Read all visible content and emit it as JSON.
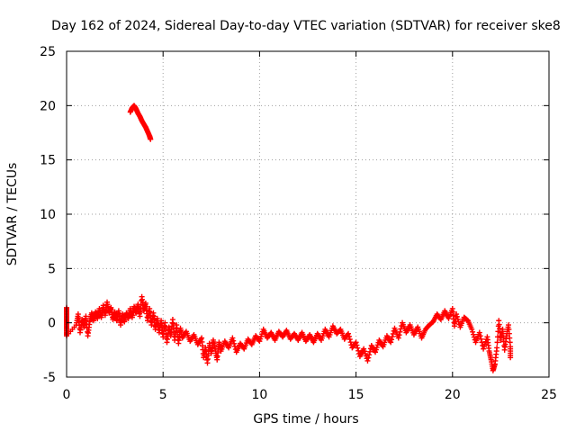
{
  "chart_data": {
    "type": "scatter",
    "title": "Day 162 of 2024, Sidereal Day-to-day VTEC variation (SDTVAR) for receiver ske8",
    "xlabel": "GPS time / hours",
    "ylabel": "SDTVAR / TECUs",
    "xlim": [
      0,
      25
    ],
    "ylim": [
      -5,
      25
    ],
    "xticks": [
      0,
      5,
      10,
      15,
      20,
      25
    ],
    "yticks": [
      -5,
      0,
      5,
      10,
      15,
      20,
      25
    ],
    "grid": true,
    "marker": "+",
    "series": [
      {
        "name": "SDTVAR",
        "color": "#ff0000",
        "points": [
          [
            0.0,
            1.4
          ],
          [
            0.0,
            0.9
          ],
          [
            0.0,
            0.4
          ],
          [
            0.0,
            -0.1
          ],
          [
            0.0,
            -0.6
          ],
          [
            0.0,
            -1.2
          ],
          [
            0.5,
            -0.2
          ],
          [
            0.6,
            0.8
          ],
          [
            0.7,
            -0.9
          ],
          [
            0.8,
            0.3
          ],
          [
            0.9,
            -0.4
          ],
          [
            1.0,
            0.6
          ],
          [
            1.1,
            -1.2
          ],
          [
            1.2,
            0.1
          ],
          [
            1.3,
            0.9
          ],
          [
            1.4,
            0.2
          ],
          [
            1.5,
            1.0
          ],
          [
            1.6,
            0.4
          ],
          [
            1.7,
            1.3
          ],
          [
            1.8,
            0.5
          ],
          [
            1.9,
            1.6
          ],
          [
            2.0,
            0.7
          ],
          [
            2.1,
            1.9
          ],
          [
            2.2,
            0.9
          ],
          [
            2.3,
            1.4
          ],
          [
            2.4,
            0.3
          ],
          [
            2.5,
            1.0
          ],
          [
            2.6,
            0.2
          ],
          [
            2.7,
            1.1
          ],
          [
            2.8,
            -0.2
          ],
          [
            2.9,
            0.8
          ],
          [
            3.0,
            0.1
          ],
          [
            3.1,
            0.9
          ],
          [
            3.2,
            0.4
          ],
          [
            3.3,
            1.3
          ],
          [
            3.4,
            0.5
          ],
          [
            3.5,
            1.5
          ],
          [
            3.6,
            0.9
          ],
          [
            3.7,
            1.7
          ],
          [
            3.8,
            0.6
          ],
          [
            3.9,
            2.4
          ],
          [
            4.0,
            1.1
          ],
          [
            4.1,
            1.8
          ],
          [
            4.2,
            0.2
          ],
          [
            4.3,
            1.3
          ],
          [
            4.4,
            -0.2
          ],
          [
            4.5,
            0.9
          ],
          [
            4.6,
            -0.6
          ],
          [
            4.7,
            0.4
          ],
          [
            4.8,
            -0.9
          ],
          [
            4.9,
            0.2
          ],
          [
            5.0,
            -1.3
          ],
          [
            5.1,
            0.0
          ],
          [
            5.2,
            -1.8
          ],
          [
            5.3,
            -0.4
          ],
          [
            5.4,
            -1.2
          ],
          [
            5.5,
            0.3
          ],
          [
            5.6,
            -1.6
          ],
          [
            5.7,
            -0.2
          ],
          [
            5.8,
            -1.9
          ],
          [
            5.9,
            -0.5
          ],
          [
            6.0,
            -1.4
          ],
          [
            6.2,
            -0.8
          ],
          [
            6.4,
            -1.7
          ],
          [
            6.6,
            -1.1
          ],
          [
            6.8,
            -2.0
          ],
          [
            7.0,
            -1.4
          ],
          [
            7.1,
            -3.2
          ],
          [
            7.2,
            -2.3
          ],
          [
            7.3,
            -3.7
          ],
          [
            7.4,
            -1.9
          ],
          [
            7.5,
            -2.8
          ],
          [
            7.6,
            -1.6
          ],
          [
            7.7,
            -2.4
          ],
          [
            7.8,
            -3.4
          ],
          [
            7.9,
            -1.8
          ],
          [
            8.0,
            -2.6
          ],
          [
            8.2,
            -1.7
          ],
          [
            8.4,
            -2.3
          ],
          [
            8.6,
            -1.4
          ],
          [
            8.8,
            -2.7
          ],
          [
            9.0,
            -1.9
          ],
          [
            9.2,
            -2.4
          ],
          [
            9.4,
            -1.5
          ],
          [
            9.6,
            -2.0
          ],
          [
            9.8,
            -1.2
          ],
          [
            10.0,
            -1.7
          ],
          [
            10.2,
            -0.6
          ],
          [
            10.4,
            -1.4
          ],
          [
            10.6,
            -0.9
          ],
          [
            10.8,
            -1.6
          ],
          [
            11.0,
            -0.8
          ],
          [
            11.2,
            -1.3
          ],
          [
            11.4,
            -0.7
          ],
          [
            11.6,
            -1.5
          ],
          [
            11.8,
            -1.0
          ],
          [
            12.0,
            -1.6
          ],
          [
            12.2,
            -0.9
          ],
          [
            12.4,
            -1.7
          ],
          [
            12.6,
            -1.1
          ],
          [
            12.8,
            -1.8
          ],
          [
            13.0,
            -1.0
          ],
          [
            13.2,
            -1.6
          ],
          [
            13.4,
            -0.6
          ],
          [
            13.6,
            -1.3
          ],
          [
            13.8,
            -0.3
          ],
          [
            14.0,
            -1.0
          ],
          [
            14.2,
            -0.6
          ],
          [
            14.4,
            -1.5
          ],
          [
            14.6,
            -1.0
          ],
          [
            14.8,
            -2.3
          ],
          [
            15.0,
            -1.8
          ],
          [
            15.2,
            -3.1
          ],
          [
            15.4,
            -2.4
          ],
          [
            15.6,
            -3.5
          ],
          [
            15.8,
            -2.1
          ],
          [
            16.0,
            -2.7
          ],
          [
            16.2,
            -1.6
          ],
          [
            16.4,
            -2.2
          ],
          [
            16.6,
            -1.2
          ],
          [
            16.8,
            -1.8
          ],
          [
            17.0,
            -0.5
          ],
          [
            17.2,
            -1.4
          ],
          [
            17.4,
            0.0
          ],
          [
            17.6,
            -0.9
          ],
          [
            17.8,
            -0.2
          ],
          [
            18.0,
            -1.1
          ],
          [
            18.2,
            -0.4
          ],
          [
            18.4,
            -1.4
          ],
          [
            18.6,
            -0.6
          ],
          [
            18.8,
            -0.2
          ],
          [
            19.0,
            0.1
          ],
          [
            19.2,
            0.8
          ],
          [
            19.4,
            0.3
          ],
          [
            19.6,
            1.1
          ],
          [
            19.8,
            0.4
          ],
          [
            20.0,
            1.3
          ],
          [
            20.1,
            -0.3
          ],
          [
            20.2,
            0.8
          ],
          [
            20.4,
            -0.4
          ],
          [
            20.6,
            0.5
          ],
          [
            20.8,
            0.2
          ],
          [
            21.0,
            -0.6
          ],
          [
            21.2,
            -1.8
          ],
          [
            21.4,
            -0.9
          ],
          [
            21.6,
            -2.4
          ],
          [
            21.8,
            -1.3
          ],
          [
            21.9,
            -2.6
          ],
          [
            22.0,
            -3.4
          ],
          [
            22.1,
            -4.4
          ],
          [
            22.2,
            -3.8
          ],
          [
            22.3,
            -2.3
          ],
          [
            22.4,
            0.2
          ],
          [
            22.5,
            -1.6
          ],
          [
            22.6,
            -0.6
          ],
          [
            22.7,
            -2.5
          ],
          [
            22.8,
            -1.2
          ],
          [
            22.9,
            -0.2
          ],
          [
            23.0,
            -2.2
          ],
          [
            23.0,
            -3.2
          ],
          [
            3.3,
            19.4
          ],
          [
            3.4,
            19.8
          ],
          [
            3.5,
            20.0
          ],
          [
            3.6,
            19.7
          ],
          [
            3.7,
            19.3
          ],
          [
            3.8,
            19.0
          ],
          [
            3.9,
            18.6
          ],
          [
            4.0,
            18.3
          ],
          [
            4.1,
            18.0
          ],
          [
            4.2,
            17.6
          ],
          [
            4.3,
            17.2
          ],
          [
            4.35,
            16.9
          ]
        ]
      }
    ]
  }
}
